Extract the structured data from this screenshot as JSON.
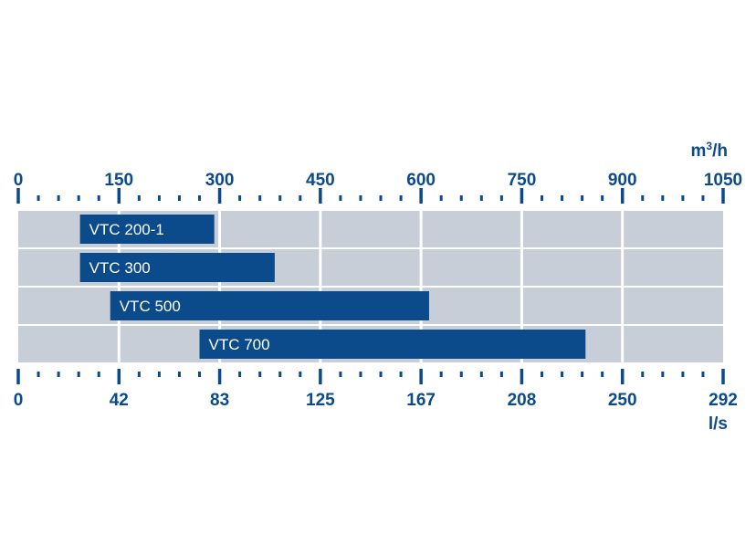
{
  "chart_data": {
    "type": "bar",
    "orientation": "horizontal",
    "categories": [
      "VTC 200-1",
      "VTC 300",
      "VTC 500",
      "VTC 700"
    ],
    "ranges": [
      {
        "name": "VTC 200-1",
        "start": 92,
        "end": 292
      },
      {
        "name": "VTC 300",
        "start": 92,
        "end": 382
      },
      {
        "name": "VTC 500",
        "start": 137,
        "end": 612
      },
      {
        "name": "VTC 700",
        "start": 270,
        "end": 845
      }
    ],
    "top_axis": {
      "unit": "m³/h",
      "unit_base": "m",
      "unit_sup": "3",
      "unit_tail": "/h",
      "range": [
        0,
        1050
      ],
      "ticks": [
        "0",
        "150",
        "300",
        "450",
        "600",
        "750",
        "900",
        "1050"
      ],
      "tick_values": [
        0,
        150,
        300,
        450,
        600,
        750,
        900,
        1050
      ]
    },
    "bottom_axis": {
      "unit": "l/s",
      "range": [
        0,
        292
      ],
      "ticks": [
        "0",
        "42",
        "83",
        "125",
        "167",
        "208",
        "250",
        "292"
      ]
    },
    "minor_ticks_per_major": 5,
    "grid": true,
    "colors": {
      "bar": "#0b4a8b",
      "track": "#c8ced8",
      "grid": "#ffffff",
      "axis": "#0b4a8b",
      "text": "#0b4a8b",
      "bar_text": "#ffffff"
    }
  }
}
